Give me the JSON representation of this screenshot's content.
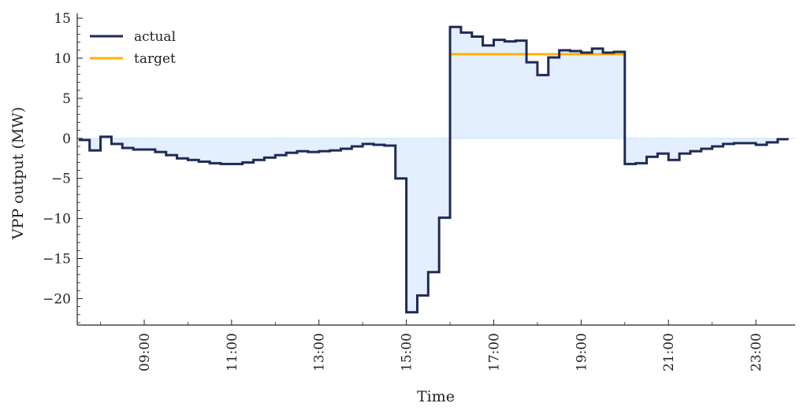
{
  "chart_data": {
    "type": "line",
    "subtype": "step-post with fill to zero",
    "title": "",
    "xlabel": "Time",
    "ylabel": "VPP output (MW)",
    "xlim": [
      "07:28",
      "23:54"
    ],
    "ylim": [
      -23.3,
      15.6
    ],
    "x_ticks": [
      "09:00",
      "11:00",
      "13:00",
      "15:00",
      "17:00",
      "19:00",
      "21:00",
      "23:00"
    ],
    "x_minor_ticks": [
      "08:00",
      "10:00",
      "12:00",
      "14:00",
      "16:00",
      "18:00",
      "20:00",
      "22:00"
    ],
    "y_ticks": [
      15,
      10,
      5,
      0,
      -5,
      -10,
      -15,
      -20
    ],
    "grid": false,
    "legend_position": "upper left",
    "colors": {
      "actual": "#1f2a55",
      "target": "#ffb000",
      "fill": "#e3efff",
      "zero_line": "#cfe2fb"
    },
    "x": [
      "07:30",
      "07:45",
      "08:00",
      "08:15",
      "08:30",
      "08:45",
      "09:00",
      "09:15",
      "09:30",
      "09:45",
      "10:00",
      "10:15",
      "10:30",
      "10:45",
      "11:00",
      "11:15",
      "11:30",
      "11:45",
      "12:00",
      "12:15",
      "12:30",
      "12:45",
      "13:00",
      "13:15",
      "13:30",
      "13:45",
      "14:00",
      "14:15",
      "14:30",
      "14:45",
      "15:00",
      "15:15",
      "15:30",
      "15:45",
      "16:00",
      "16:15",
      "16:30",
      "16:45",
      "17:00",
      "17:15",
      "17:30",
      "17:45",
      "18:00",
      "18:15",
      "18:30",
      "18:45",
      "19:00",
      "19:15",
      "19:30",
      "19:45",
      "20:00",
      "20:15",
      "20:30",
      "20:45",
      "21:00",
      "21:15",
      "21:30",
      "21:45",
      "22:00",
      "22:15",
      "22:30",
      "22:45",
      "23:00",
      "23:15",
      "23:30"
    ],
    "x_end": "23:45",
    "series": [
      {
        "name": "actual",
        "values": [
          -0.2,
          -1.5,
          0.2,
          -0.7,
          -1.2,
          -1.4,
          -1.4,
          -1.7,
          -2.1,
          -2.5,
          -2.7,
          -2.9,
          -3.1,
          -3.2,
          -3.2,
          -3.0,
          -2.7,
          -2.4,
          -2.1,
          -1.8,
          -1.6,
          -1.7,
          -1.6,
          -1.5,
          -1.3,
          -1.0,
          -0.7,
          -0.8,
          -0.9,
          -5.0,
          -21.7,
          -19.6,
          -16.7,
          -9.9,
          13.9,
          13.2,
          12.7,
          11.6,
          12.3,
          12.1,
          12.2,
          9.5,
          7.9,
          10.1,
          11.0,
          10.9,
          10.7,
          11.2,
          10.7,
          10.8,
          -3.2,
          -3.1,
          -2.3,
          -1.9,
          -2.7,
          -1.9,
          -1.6,
          -1.3,
          -1.0,
          -0.7,
          -0.6,
          -0.6,
          -0.8,
          -0.5,
          -0.1
        ]
      },
      {
        "name": "target",
        "x_start": "16:00",
        "x_end": "20:00",
        "value": 10.5
      }
    ],
    "legend": [
      "actual",
      "target"
    ]
  }
}
